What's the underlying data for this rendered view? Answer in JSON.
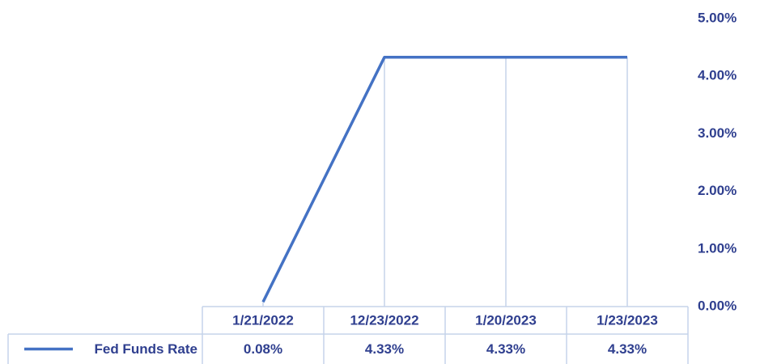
{
  "chart_data": {
    "type": "line",
    "categories": [
      "1/21/2022",
      "12/23/2022",
      "1/20/2023",
      "1/23/2023"
    ],
    "series": [
      {
        "name": "Fed Funds Rate",
        "color": "#4472c4",
        "values": [
          0.08,
          4.33,
          4.33,
          4.33
        ],
        "value_labels": [
          "0.08%",
          "4.33%",
          "4.33%",
          "4.33%"
        ]
      }
    ],
    "ylim": [
      0,
      5
    ],
    "yticks": [
      {
        "value": 0,
        "label": "0.00%"
      },
      {
        "value": 1,
        "label": "1.00%"
      },
      {
        "value": 2,
        "label": "2.00%"
      },
      {
        "value": 3,
        "label": "3.00%"
      },
      {
        "value": 4,
        "label": "4.00%"
      },
      {
        "value": 5,
        "label": "5.00%"
      }
    ],
    "drop_lines": true
  }
}
